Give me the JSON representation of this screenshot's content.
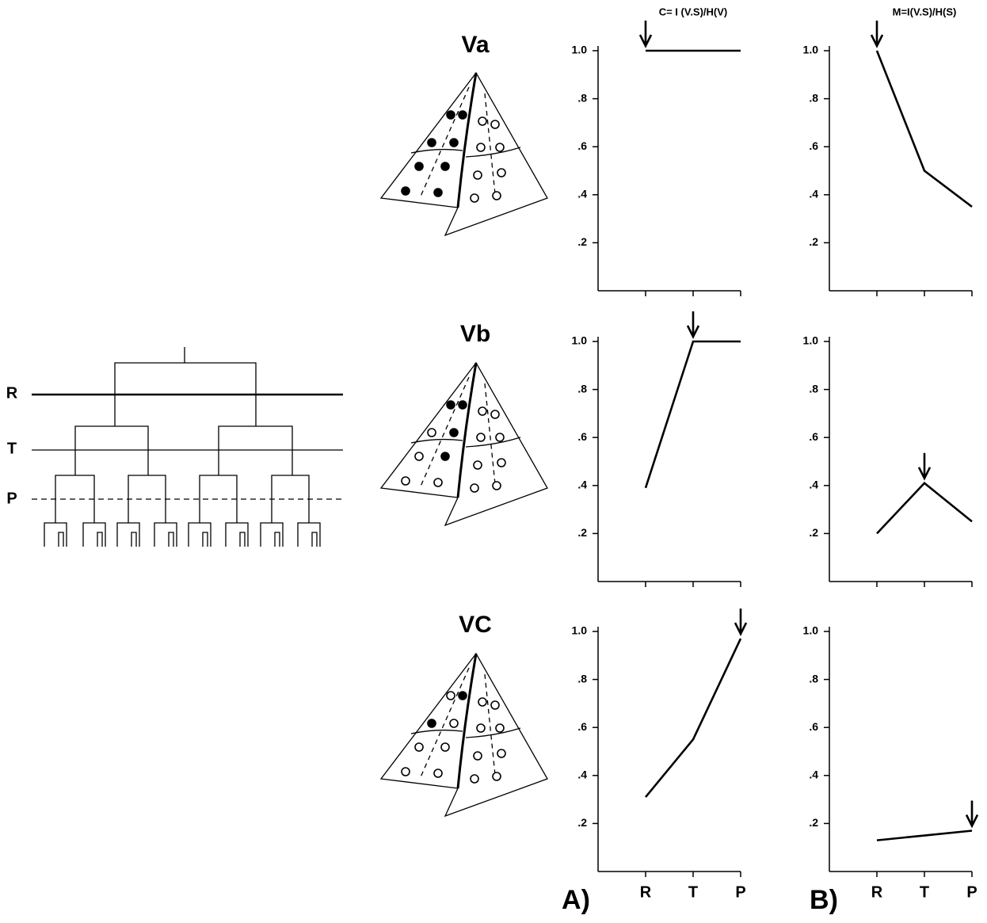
{
  "chart_data": [
    {
      "type": "line",
      "title": "C= I (V.S)/H(V)",
      "categories": [
        null,
        null,
        null
      ],
      "values": [
        1.0,
        1.0,
        1.0
      ],
      "color": "#000000",
      "ylim": [
        0,
        1
      ],
      "yticks": [
        {
          "value": 0.2,
          "label": ".2"
        },
        {
          "value": 0.4,
          "label": ".4"
        },
        {
          "value": 0.6,
          "label": ".6"
        },
        {
          "value": 0.8,
          "label": ".8"
        },
        {
          "value": 1.0,
          "label": "1.0"
        }
      ],
      "arrow_at": 0
    },
    {
      "type": "line",
      "title": "M=I(V.S)/H(S)",
      "categories": [
        null,
        null,
        null
      ],
      "values": [
        1.0,
        0.5,
        0.35
      ],
      "color": "#000000",
      "ylim": [
        0,
        1
      ],
      "yticks": [
        {
          "value": 0.2,
          "label": ".2"
        },
        {
          "value": 0.4,
          "label": ".4"
        },
        {
          "value": 0.6,
          "label": ".6"
        },
        {
          "value": 0.8,
          "label": ".8"
        },
        {
          "value": 1.0,
          "label": "1.0"
        }
      ],
      "arrow_at": 0
    },
    {
      "type": "line",
      "categories": [
        null,
        null,
        null
      ],
      "values": [
        0.39,
        1.0,
        1.0
      ],
      "color": "#000000",
      "ylim": [
        0,
        1
      ],
      "yticks": [
        {
          "value": 0.2,
          "label": ".2"
        },
        {
          "value": 0.4,
          "label": ".4"
        },
        {
          "value": 0.6,
          "label": ".6"
        },
        {
          "value": 0.8,
          "label": ".8"
        },
        {
          "value": 1.0,
          "label": "1.0"
        }
      ],
      "arrow_at": 1
    },
    {
      "type": "line",
      "categories": [
        null,
        null,
        null
      ],
      "values": [
        0.2,
        0.41,
        0.25
      ],
      "color": "#000000",
      "ylim": [
        0,
        1
      ],
      "yticks": [
        {
          "value": 0.2,
          "label": ".2"
        },
        {
          "value": 0.4,
          "label": ".4"
        },
        {
          "value": 0.6,
          "label": ".6"
        },
        {
          "value": 0.8,
          "label": ".8"
        },
        {
          "value": 1.0,
          "label": "1.0"
        }
      ],
      "arrow_at": 1
    },
    {
      "type": "line",
      "categories": [
        "R",
        "T",
        "P"
      ],
      "values": [
        0.31,
        0.55,
        0.97
      ],
      "color": "#000000",
      "ylim": [
        0,
        1
      ],
      "yticks": [
        {
          "value": 0.2,
          "label": ".2"
        },
        {
          "value": 0.4,
          "label": ".4"
        },
        {
          "value": 0.6,
          "label": ".6"
        },
        {
          "value": 0.8,
          "label": ".8"
        },
        {
          "value": 1.0,
          "label": "1.0"
        }
      ],
      "arrow_at": 2
    },
    {
      "type": "line",
      "categories": [
        "R",
        "T",
        "P"
      ],
      "values": [
        0.13,
        0.15,
        0.17
      ],
      "color": "#000000",
      "ylim": [
        0,
        1
      ],
      "yticks": [
        {
          "value": 0.2,
          "label": ".2"
        },
        {
          "value": 0.4,
          "label": ".4"
        },
        {
          "value": 0.6,
          "label": ".6"
        },
        {
          "value": 0.8,
          "label": ".8"
        },
        {
          "value": 1.0,
          "label": "1.0"
        }
      ],
      "arrow_at": 2
    }
  ],
  "figure": {
    "panel_labels": [
      "A)",
      "B)"
    ],
    "diagram_labels": [
      "Va",
      "Vb",
      "VC"
    ],
    "dendrogram_levels": [
      "R",
      "T",
      "P"
    ]
  }
}
